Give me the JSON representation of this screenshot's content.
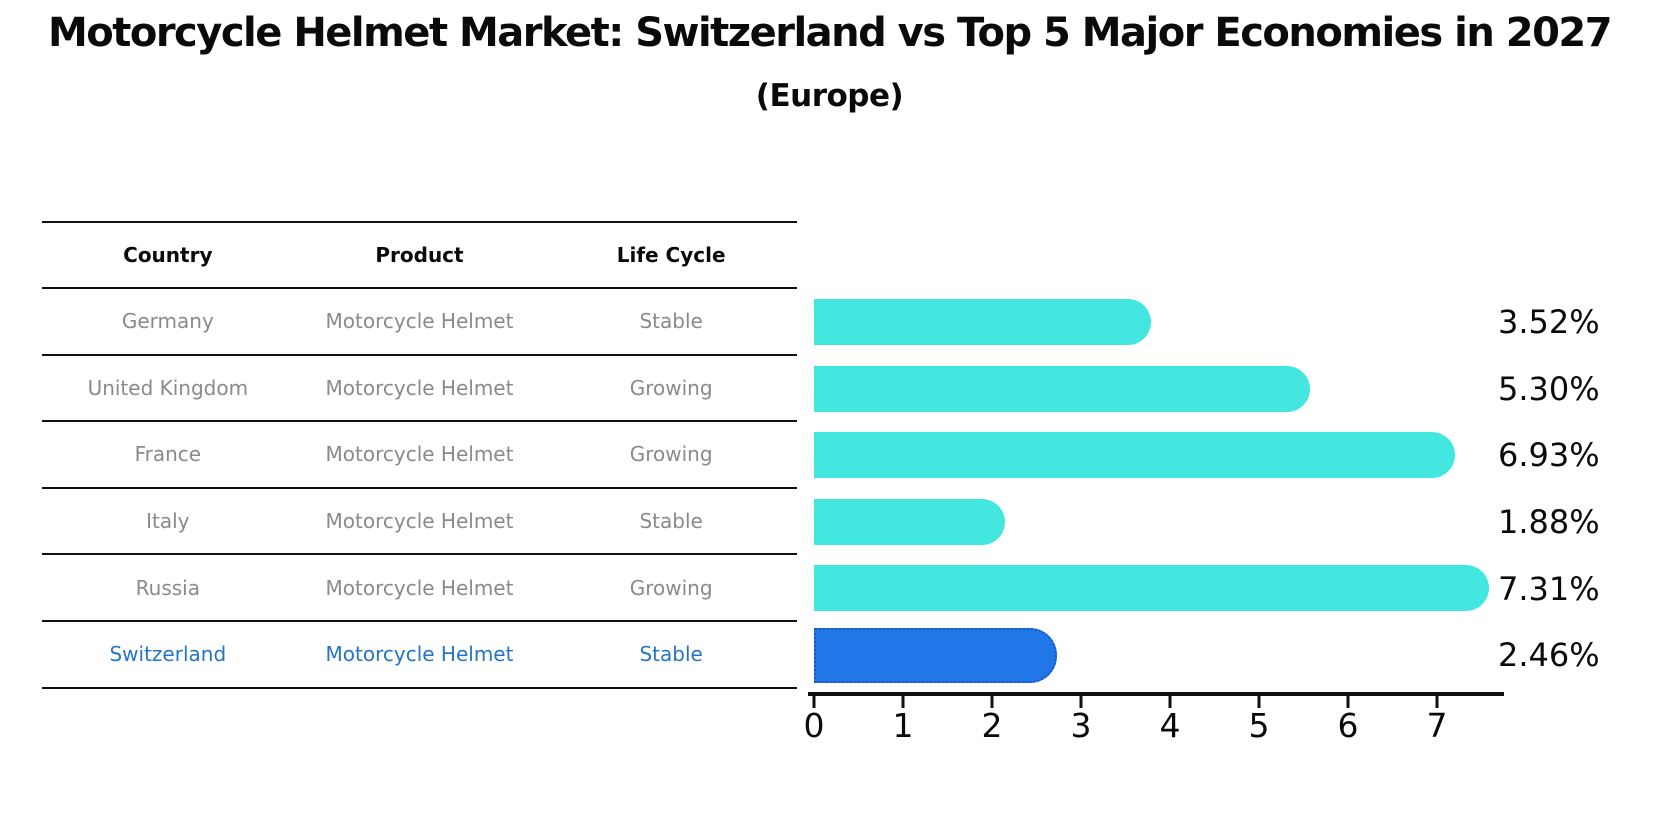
{
  "title": "Motorcycle Helmet Market: Switzerland vs Top 5 Major Economies in 2027",
  "subtitle": "(Europe)",
  "table": {
    "headers": [
      "Country",
      "Product",
      "Life Cycle"
    ],
    "rows": [
      {
        "country": "Germany",
        "product": "Motorcycle Helmet",
        "life_cycle": "Stable",
        "highlighted": false
      },
      {
        "country": "United Kingdom",
        "product": "Motorcycle Helmet",
        "life_cycle": "Growing",
        "highlighted": false
      },
      {
        "country": "France",
        "product": "Motorcycle Helmet",
        "life_cycle": "Growing",
        "highlighted": false
      },
      {
        "country": "Italy",
        "product": "Motorcycle Helmet",
        "life_cycle": "Stable",
        "highlighted": false
      },
      {
        "country": "Russia",
        "product": "Motorcycle Helmet",
        "life_cycle": "Growing",
        "highlighted": false
      },
      {
        "country": "Switzerland",
        "product": "Motorcycle Helmet",
        "life_cycle": "Stable",
        "highlighted": true
      }
    ]
  },
  "chart_data": {
    "type": "bar",
    "orientation": "horizontal",
    "title": "Motorcycle Helmet Market: Switzerland vs Top 5 Major Economies in 2027",
    "subtitle": "(Europe)",
    "categories": [
      "Germany",
      "United Kingdom",
      "France",
      "Italy",
      "Russia",
      "Switzerland"
    ],
    "values": [
      3.52,
      5.3,
      6.93,
      1.88,
      7.31,
      2.46
    ],
    "value_labels": [
      "3.52%",
      "5.30%",
      "6.93%",
      "1.88%",
      "7.31%",
      "2.46%"
    ],
    "x_ticks": [
      0,
      1,
      2,
      3,
      4,
      5,
      6,
      7
    ],
    "xlim": [
      0,
      7.7
    ],
    "grid": false,
    "bar_color": "#44e7e0",
    "highlight_color": "#2176e8",
    "highlight_index": 5,
    "highlight_text_color": "#2575c5"
  }
}
